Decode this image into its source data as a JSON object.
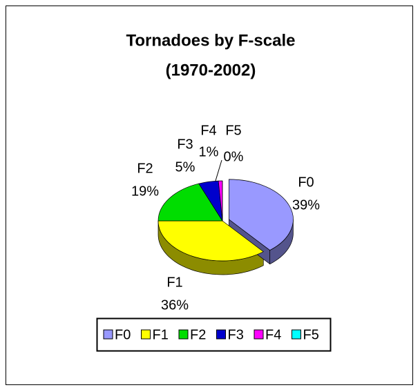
{
  "chart_data": {
    "type": "pie",
    "title": "Tornadoes by F-scale",
    "subtitle": "(1970-2002)",
    "categories": [
      "F0",
      "F1",
      "F2",
      "F3",
      "F4",
      "F5"
    ],
    "values": [
      39,
      36,
      19,
      5,
      1,
      0
    ],
    "value_labels": [
      "39%",
      "36%",
      "19%",
      "5%",
      "1%",
      "0%"
    ],
    "colors": [
      "#9999ff",
      "#ffff00",
      "#00dd00",
      "#0000cc",
      "#ff00ff",
      "#00ffff"
    ],
    "legend": "bottom"
  }
}
